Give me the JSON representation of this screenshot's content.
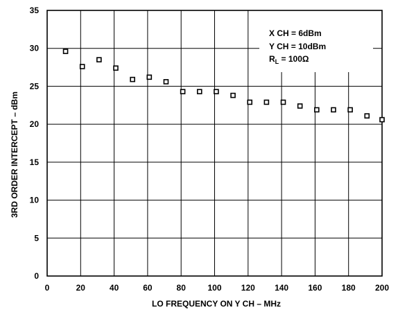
{
  "chart_data": {
    "type": "scatter",
    "xlabel": "LO FREQUENCY ON Y CH – MHz",
    "ylabel": "3RD ORDER INTERCEPT – dBm",
    "xlim": [
      0,
      200
    ],
    "ylim": [
      0,
      35
    ],
    "xticks": [
      "0",
      "20",
      "40",
      "60",
      "80",
      "100",
      "120",
      "140",
      "160",
      "180",
      "200"
    ],
    "yticks": [
      "0",
      "5",
      "10",
      "15",
      "20",
      "25",
      "30",
      "35"
    ],
    "grid": true,
    "series": [
      {
        "marker": "open-square",
        "x": [
          11,
          21,
          31,
          41,
          51,
          61,
          71,
          81,
          91,
          101,
          111,
          121,
          131,
          141,
          151,
          161,
          171,
          181,
          191,
          200
        ],
        "y": [
          29.6,
          27.6,
          28.5,
          27.4,
          25.9,
          26.2,
          25.6,
          24.3,
          24.3,
          24.3,
          23.8,
          22.9,
          22.9,
          22.9,
          22.4,
          21.9,
          21.9,
          21.9,
          21.1,
          20.6
        ]
      }
    ],
    "annotation": {
      "lines": [
        "X CH = 6dBm",
        "Y CH = 10dBm"
      ],
      "rl_prefix": "R",
      "rl_sub": "L",
      "rl_suffix": " = 100Ω"
    }
  }
}
